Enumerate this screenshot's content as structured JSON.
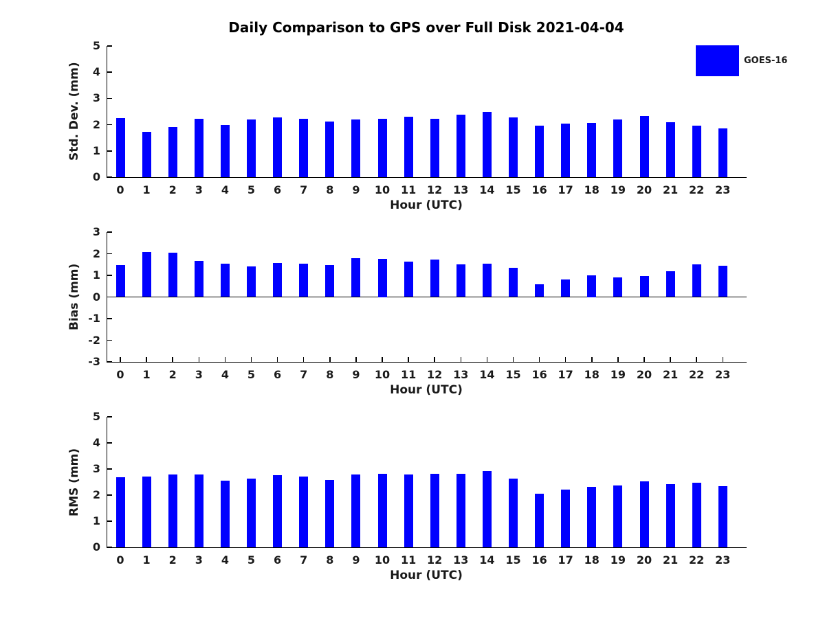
{
  "title": "Daily Comparison to GPS over Full Disk 2021-04-04",
  "legend": {
    "label": "GOES-16",
    "color": "#0000FF"
  },
  "colors": {
    "bar": "#0000FF",
    "axis": "#000000",
    "text": "#1a1a1a"
  },
  "chart_data": [
    {
      "type": "bar",
      "name": "std-dev",
      "ylabel": "Std. Dev. (mm)",
      "xlabel": "Hour (UTC)",
      "series_name": "GOES-16",
      "categories": [
        "0",
        "1",
        "2",
        "3",
        "4",
        "5",
        "6",
        "7",
        "8",
        "9",
        "10",
        "11",
        "12",
        "13",
        "14",
        "15",
        "16",
        "17",
        "18",
        "19",
        "20",
        "21",
        "22",
        "23"
      ],
      "values": [
        2.25,
        1.72,
        1.92,
        2.22,
        1.98,
        2.2,
        2.27,
        2.22,
        2.12,
        2.2,
        2.22,
        2.3,
        2.22,
        2.38,
        2.48,
        2.27,
        1.97,
        2.04,
        2.06,
        2.2,
        2.32,
        2.1,
        1.96,
        1.86
      ],
      "ylim": [
        0,
        5
      ],
      "yticks": [
        0,
        1,
        2,
        3,
        4,
        5
      ],
      "grid": false,
      "legend_position": "outside-upper-right"
    },
    {
      "type": "bar",
      "name": "bias",
      "ylabel": "Bias (mm)",
      "xlabel": "Hour (UTC)",
      "series_name": "GOES-16",
      "categories": [
        "0",
        "1",
        "2",
        "3",
        "4",
        "5",
        "6",
        "7",
        "8",
        "9",
        "10",
        "11",
        "12",
        "13",
        "14",
        "15",
        "16",
        "17",
        "18",
        "19",
        "20",
        "21",
        "22",
        "23"
      ],
      "values": [
        1.47,
        2.07,
        2.04,
        1.66,
        1.54,
        1.4,
        1.57,
        1.53,
        1.47,
        1.8,
        1.75,
        1.65,
        1.74,
        1.52,
        1.55,
        1.35,
        0.6,
        0.8,
        1.0,
        0.91,
        0.97,
        1.2,
        1.52,
        1.44
      ],
      "ylim": [
        -3,
        3
      ],
      "yticks": [
        -3,
        -2,
        -1,
        0,
        1,
        2,
        3
      ],
      "grid": false,
      "legend_position": "none"
    },
    {
      "type": "bar",
      "name": "rms",
      "ylabel": "RMS (mm)",
      "xlabel": "Hour (UTC)",
      "series_name": "GOES-16",
      "categories": [
        "0",
        "1",
        "2",
        "3",
        "4",
        "5",
        "6",
        "7",
        "8",
        "9",
        "10",
        "11",
        "12",
        "13",
        "14",
        "15",
        "16",
        "17",
        "18",
        "19",
        "20",
        "21",
        "22",
        "23"
      ],
      "values": [
        2.68,
        2.72,
        2.78,
        2.78,
        2.54,
        2.64,
        2.76,
        2.72,
        2.58,
        2.8,
        2.82,
        2.8,
        2.82,
        2.82,
        2.92,
        2.63,
        2.06,
        2.22,
        2.31,
        2.37,
        2.52,
        2.43,
        2.48,
        2.34
      ],
      "ylim": [
        0,
        5
      ],
      "yticks": [
        0,
        1,
        2,
        3,
        4,
        5
      ],
      "grid": false,
      "legend_position": "none"
    }
  ]
}
